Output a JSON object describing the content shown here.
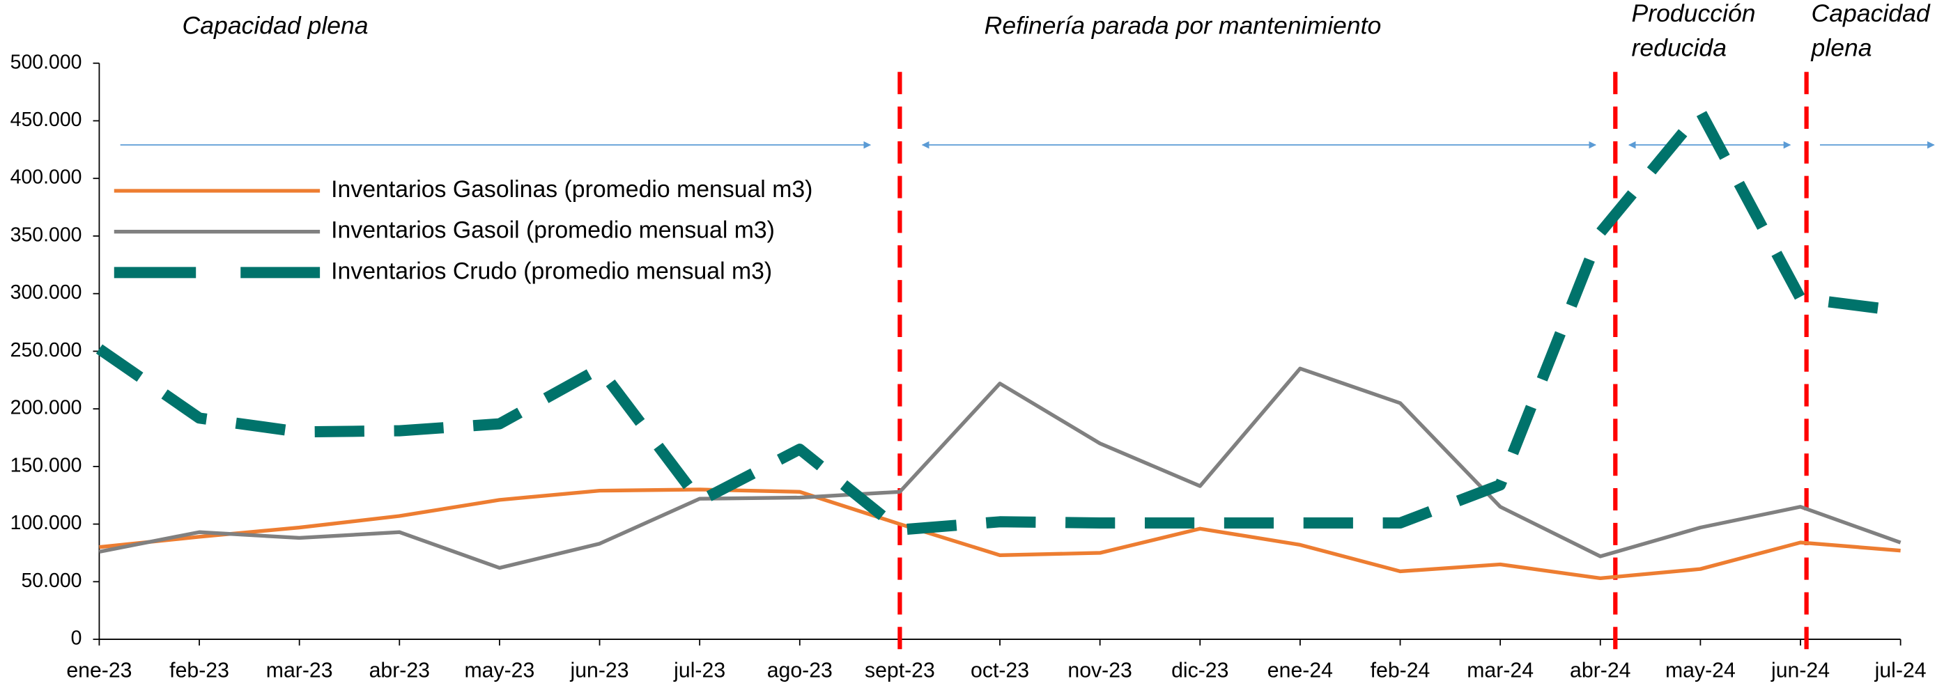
{
  "chart_data": {
    "type": "line",
    "categories": [
      "ene-23",
      "feb-23",
      "mar-23",
      "abr-23",
      "may-23",
      "jun-23",
      "jul-23",
      "ago-23",
      "sept-23",
      "oct-23",
      "nov-23",
      "dic-23",
      "ene-24",
      "feb-24",
      "mar-24",
      "abr-24",
      "may-24",
      "jun-24",
      "jul-24"
    ],
    "series": [
      {
        "name": "Inventarios Gasolinas (promedio mensual m3)",
        "color": "#ed7d31",
        "values": [
          80000,
          89000,
          97000,
          107000,
          121000,
          129000,
          130000,
          128000,
          100000,
          73000,
          75000,
          96000,
          82000,
          59000,
          65000,
          53000,
          61000,
          84000,
          77000
        ]
      },
      {
        "name": "Inventarios Gasoil (promedio mensual m3)",
        "color": "#808080",
        "values": [
          76000,
          93000,
          88000,
          93000,
          62000,
          83000,
          122000,
          123000,
          128000,
          222000,
          170000,
          133000,
          235000,
          205000,
          115000,
          72000,
          97000,
          115000,
          84000
        ]
      },
      {
        "name": "Inventarios Crudo (promedio mensual m3)",
        "color": "#00736b",
        "values": [
          252000,
          192000,
          180000,
          181000,
          187000,
          235000,
          120000,
          165000,
          95000,
          102000,
          101000,
          101000,
          101000,
          101000,
          134000,
          353000,
          458000,
          296000,
          285000
        ]
      }
    ],
    "ylim": [
      0,
      500000
    ],
    "yticks": [
      0,
      {
        "value": 50000,
        "label": "50.000"
      },
      {
        "value": 100000,
        "label": "100.000"
      },
      {
        "value": 150000,
        "label": "150.000"
      },
      {
        "value": 200000,
        "label": "200.000"
      },
      {
        "value": 250000,
        "label": "250.000"
      },
      {
        "value": 300000,
        "label": "300.000"
      },
      {
        "value": 350000,
        "label": "350.000"
      },
      {
        "value": 400000,
        "label": "400.000"
      },
      {
        "value": 450000,
        "label": "450.000"
      },
      {
        "value": 500000,
        "label": "500.000"
      }
    ],
    "annotations": [
      [
        "Capacidad plena"
      ],
      [
        "Refinería parada por mantenimiento"
      ],
      [
        "Producción",
        "reducida"
      ],
      [
        "Capacidad",
        "plena"
      ]
    ],
    "legend": "upper left"
  }
}
